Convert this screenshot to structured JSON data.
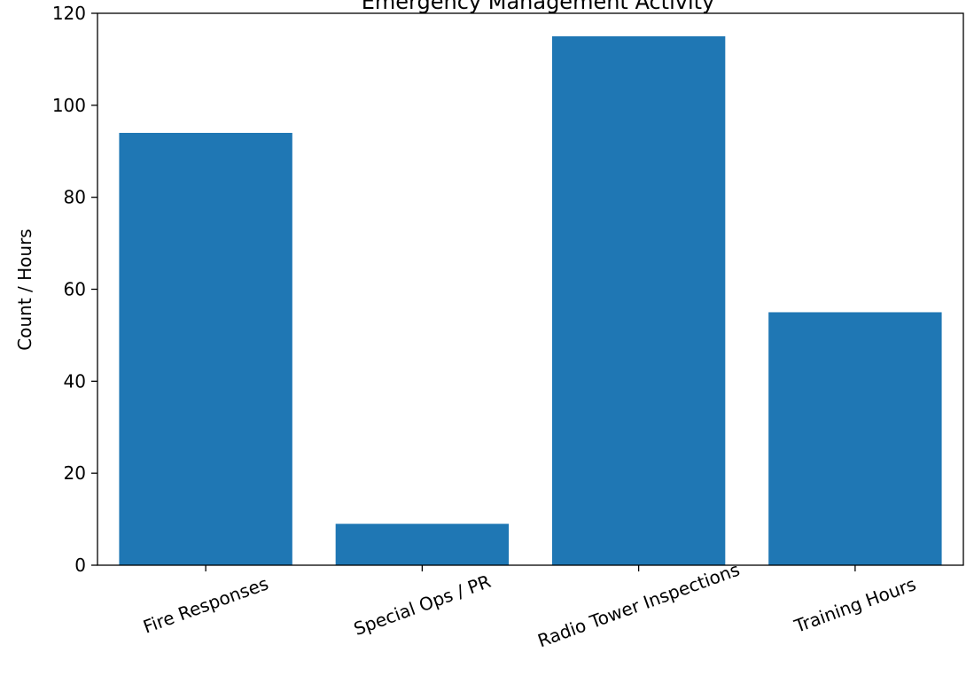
{
  "chart_data": {
    "type": "bar",
    "title": "Emergency Management Activity",
    "xlabel": "",
    "ylabel": "Count / Hours",
    "categories": [
      "Fire Responses",
      "Special Ops / PR",
      "Radio Tower Inspections",
      "Training Hours"
    ],
    "values": [
      94,
      9,
      115,
      55
    ],
    "ylim": [
      0,
      120
    ],
    "yticks": [
      0,
      20,
      40,
      60,
      80,
      100,
      120
    ],
    "grid": false,
    "legend": "none",
    "bar_color": "#1f77b4"
  }
}
